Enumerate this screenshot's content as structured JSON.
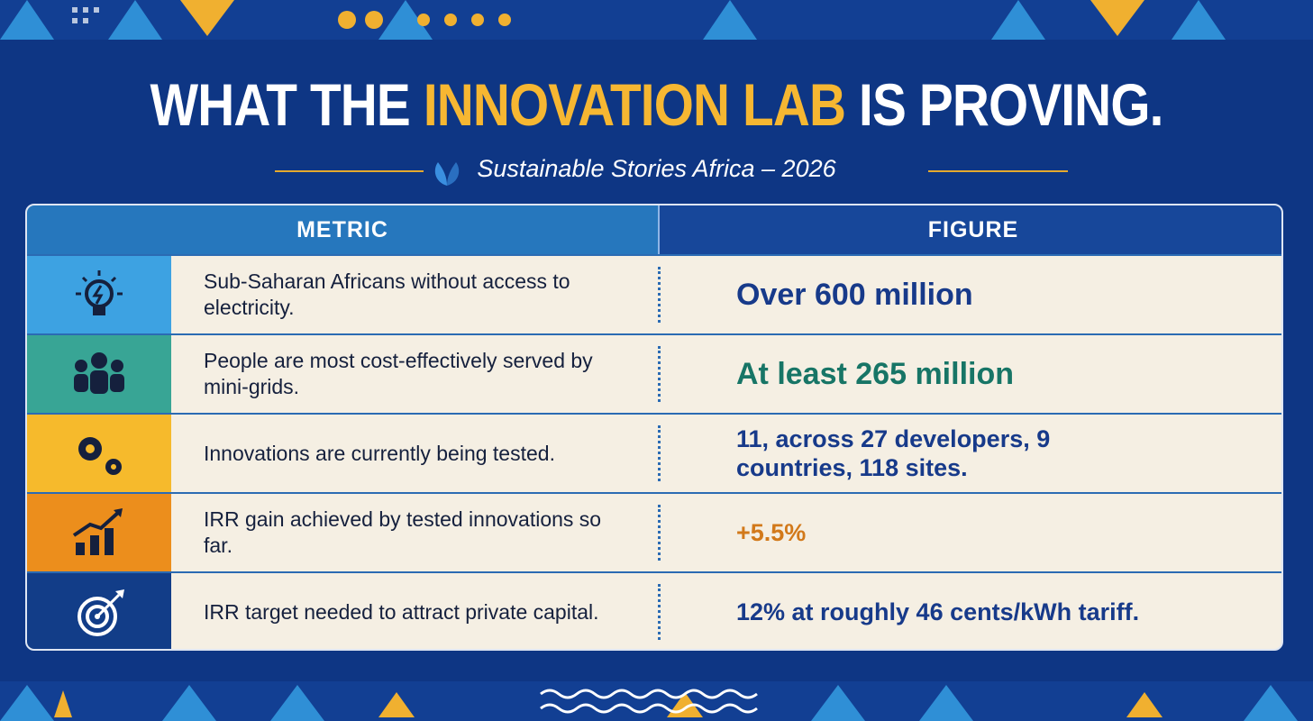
{
  "header": {
    "title_start": "WHAT THE",
    "title_highlight": "INNOVATION LAB",
    "title_end": "IS PROVING.",
    "subtitle": "Sustainable Stories Africa – 2026"
  },
  "table": {
    "columns": [
      "METRIC",
      "FIGURE"
    ],
    "rows": [
      [
        "Sub-Saharan Africans without access to electricity.",
        "Over 600 million"
      ],
      [
        "People are most cost-effectively served by mini-grids.",
        "At least 265 million"
      ],
      [
        "Innovations are currently being tested.",
        "11, across 27 developers, 9 countries, 118 sites."
      ],
      [
        "IRR gain achieved by tested innovations so far.",
        "+5.5%"
      ],
      [
        "IRR target needed to attract private capital.",
        "12% at roughly 46 cents/kWh tariff."
      ]
    ]
  }
}
